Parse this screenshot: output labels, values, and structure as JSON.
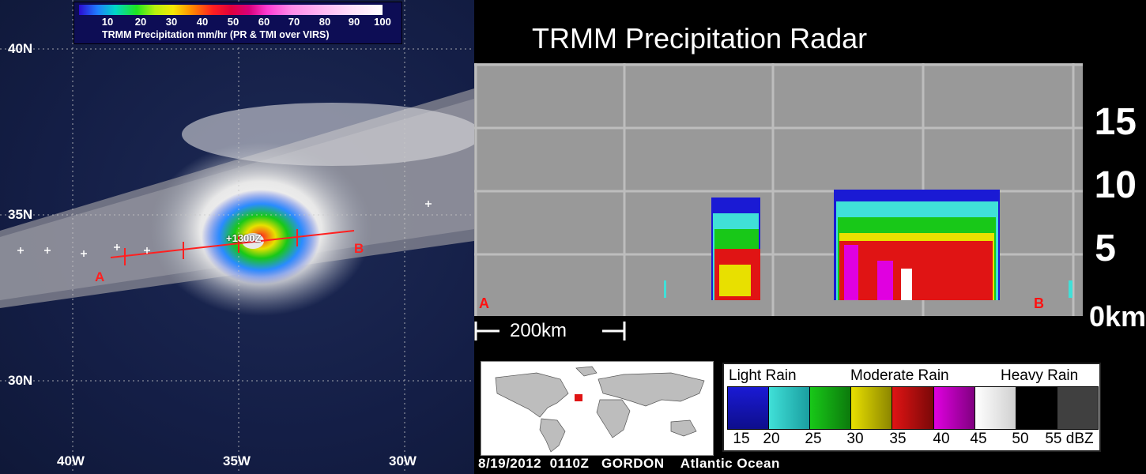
{
  "map": {
    "legend": {
      "ticks": [
        "10",
        "20",
        "30",
        "40",
        "50",
        "60",
        "70",
        "80",
        "90",
        "100"
      ],
      "title": "TRMM Precipitation mm/hr (PR & TMI over VIRS)"
    },
    "lat_labels": [
      "40N",
      "35N",
      "30N"
    ],
    "lon_labels": [
      "40W",
      "35W",
      "30W"
    ],
    "track": {
      "start": "A",
      "end": "B",
      "time": "+1300Z"
    }
  },
  "radar": {
    "title": "TRMM Precipitation Radar",
    "altitudes": [
      "15",
      "10",
      "5",
      "0km"
    ],
    "track_start": "A",
    "track_end": "B",
    "scale": "200km"
  },
  "legend": {
    "categories": [
      "Light Rain",
      "Moderate Rain",
      "Heavy Rain"
    ],
    "colors": [
      "#1a1ad4",
      "#40e0d8",
      "#18c818",
      "#e8e000",
      "#e01414",
      "#e000e0",
      "#ffffff",
      "#000000",
      "#404040"
    ],
    "values": [
      "15",
      "20",
      "25",
      "30",
      "35",
      "40",
      "45",
      "50",
      "55 dBZ"
    ]
  },
  "footer": {
    "date": "8/19/2012",
    "time": "0110Z",
    "storm": "GORDON",
    "region": "Atlantic Ocean"
  }
}
